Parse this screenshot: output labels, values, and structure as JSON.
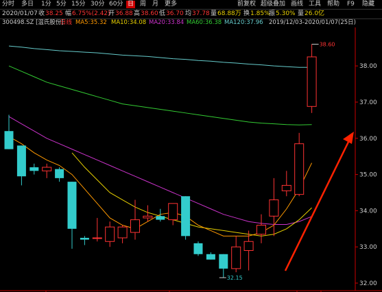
{
  "toolbar": {
    "periods": [
      "分时",
      "多日",
      "1分",
      "5分",
      "15分",
      "30分",
      "60分",
      "日",
      "周",
      "月",
      "更多"
    ],
    "active_period": "日",
    "right_buttons": [
      "前复权",
      "超级叠加",
      "画线",
      "工具",
      "帮助",
      "F9",
      "隐藏"
    ]
  },
  "info": {
    "date": "2020/01/07",
    "close_label": "收",
    "close": "38.25",
    "change_label": "幅",
    "change": "6.75%(2.42)",
    "open_label": "开",
    "open": "36.88",
    "high_label": "高",
    "high": "38.60",
    "low_label": "低",
    "low": "36.70",
    "limit_label": "均",
    "limit": "37.78",
    "amount_label": "量",
    "amount": "68.88万",
    "turnover_label": "换",
    "turnover": "1.85%",
    "amplitude_label": "振",
    "amplitude": "5.30%",
    "volume_label": "量",
    "volume": "26.0亿"
  },
  "ma_bar": {
    "stock": "300498.SZ [温氏股份]",
    "line_type": "日线",
    "ma": [
      {
        "text": "MA5:35.32",
        "color": "#ff9900"
      },
      {
        "text": "MA10:34.08",
        "color": "#e8d000"
      },
      {
        "text": "MA20:33.84",
        "color": "#cc33cc"
      },
      {
        "text": "MA60:36.38",
        "color": "#33cc33"
      },
      {
        "text": "MA120:37.96",
        "color": "#66cccc"
      }
    ],
    "range": "2019/12/03-2020/01/07(25日)"
  },
  "chart_data": {
    "type": "candlestick",
    "ylim": [
      32.0,
      38.95
    ],
    "yticks": [
      "38.00",
      "37.00",
      "36.00",
      "35.00",
      "34.00",
      "33.00",
      "32.00"
    ],
    "candles": [
      {
        "o": 36.2,
        "h": 36.65,
        "l": 35.7,
        "c": 35.7
      },
      {
        "o": 35.8,
        "h": 35.8,
        "l": 34.7,
        "c": 34.95
      },
      {
        "o": 35.2,
        "h": 35.3,
        "l": 35.0,
        "c": 35.1
      },
      {
        "o": 35.1,
        "h": 35.3,
        "l": 34.9,
        "c": 35.2
      },
      {
        "o": 35.15,
        "h": 35.2,
        "l": 34.8,
        "c": 34.9
      },
      {
        "o": 34.8,
        "h": 34.8,
        "l": 32.95,
        "c": 33.5
      },
      {
        "o": 33.25,
        "h": 33.3,
        "l": 33.05,
        "c": 33.2
      },
      {
        "o": 33.25,
        "h": 33.8,
        "l": 33.15,
        "c": 33.25
      },
      {
        "o": 33.15,
        "h": 33.7,
        "l": 33.0,
        "c": 33.55
      },
      {
        "o": 33.25,
        "h": 33.6,
        "l": 33.1,
        "c": 33.55
      },
      {
        "o": 33.4,
        "h": 34.3,
        "l": 33.2,
        "c": 33.75
      },
      {
        "o": 33.8,
        "h": 34.15,
        "l": 33.7,
        "c": 33.85
      },
      {
        "o": 33.85,
        "h": 34.05,
        "l": 33.7,
        "c": 33.75
      },
      {
        "o": 33.75,
        "h": 34.15,
        "l": 33.6,
        "c": 34.2
      },
      {
        "o": 34.4,
        "h": 34.4,
        "l": 33.2,
        "c": 33.3
      },
      {
        "o": 33.1,
        "h": 33.15,
        "l": 32.75,
        "c": 32.8
      },
      {
        "o": 32.8,
        "h": 32.85,
        "l": 32.65,
        "c": 32.65
      },
      {
        "o": 32.8,
        "h": 32.8,
        "l": 32.15,
        "c": 32.4
      },
      {
        "o": 32.4,
        "h": 33.3,
        "l": 32.3,
        "c": 33.0
      },
      {
        "o": 32.9,
        "h": 33.45,
        "l": 32.35,
        "c": 33.15
      },
      {
        "o": 33.35,
        "h": 33.9,
        "l": 33.1,
        "c": 33.6
      },
      {
        "o": 33.85,
        "h": 34.9,
        "l": 33.3,
        "c": 34.3
      },
      {
        "o": 34.55,
        "h": 35.1,
        "l": 34.4,
        "c": 34.7
      },
      {
        "o": 34.45,
        "h": 36.15,
        "l": 34.4,
        "c": 35.85
      },
      {
        "o": 36.88,
        "h": 38.6,
        "l": 36.7,
        "c": 38.25
      }
    ],
    "ma5": [
      36.05,
      35.85,
      35.6,
      35.4,
      35.25,
      35.0,
      34.6,
      34.2,
      33.8,
      33.6,
      33.5,
      33.7,
      33.9,
      33.95,
      33.85,
      33.6,
      33.45,
      33.3,
      33.3,
      33.3,
      33.4,
      33.6,
      34.05,
      34.6,
      35.32
    ],
    "ma10": [
      null,
      null,
      null,
      null,
      null,
      35.6,
      35.2,
      34.85,
      34.5,
      34.3,
      34.1,
      33.95,
      33.85,
      33.75,
      33.65,
      33.55,
      33.5,
      33.45,
      33.4,
      33.35,
      33.3,
      33.35,
      33.5,
      33.75,
      34.08
    ],
    "ma20": [
      36.6,
      36.4,
      36.2,
      36.0,
      35.85,
      35.7,
      35.55,
      35.4,
      35.25,
      35.1,
      34.95,
      34.8,
      34.65,
      34.5,
      34.35,
      34.2,
      34.05,
      33.9,
      33.8,
      33.7,
      33.65,
      33.62,
      33.62,
      33.7,
      33.84
    ],
    "ma60": [
      38.0,
      37.85,
      37.7,
      37.55,
      37.45,
      37.35,
      37.25,
      37.15,
      37.05,
      36.95,
      36.9,
      36.85,
      36.8,
      36.75,
      36.7,
      36.65,
      36.6,
      36.55,
      36.5,
      36.45,
      36.42,
      36.4,
      36.38,
      36.37,
      36.38
    ],
    "ma120": [
      38.55,
      38.52,
      38.48,
      38.45,
      38.42,
      38.4,
      38.38,
      38.36,
      38.33,
      38.3,
      38.28,
      38.26,
      38.23,
      38.2,
      38.18,
      38.15,
      38.13,
      38.1,
      38.08,
      38.05,
      38.03,
      38.0,
      37.98,
      37.96,
      37.96
    ],
    "annotations": {
      "max_label": "38.60",
      "min_label": "32.15"
    },
    "colors": {
      "up": "#ff3333",
      "down": "#33cccc",
      "axis": "#cc0000",
      "arrow": "#ff2200"
    }
  }
}
